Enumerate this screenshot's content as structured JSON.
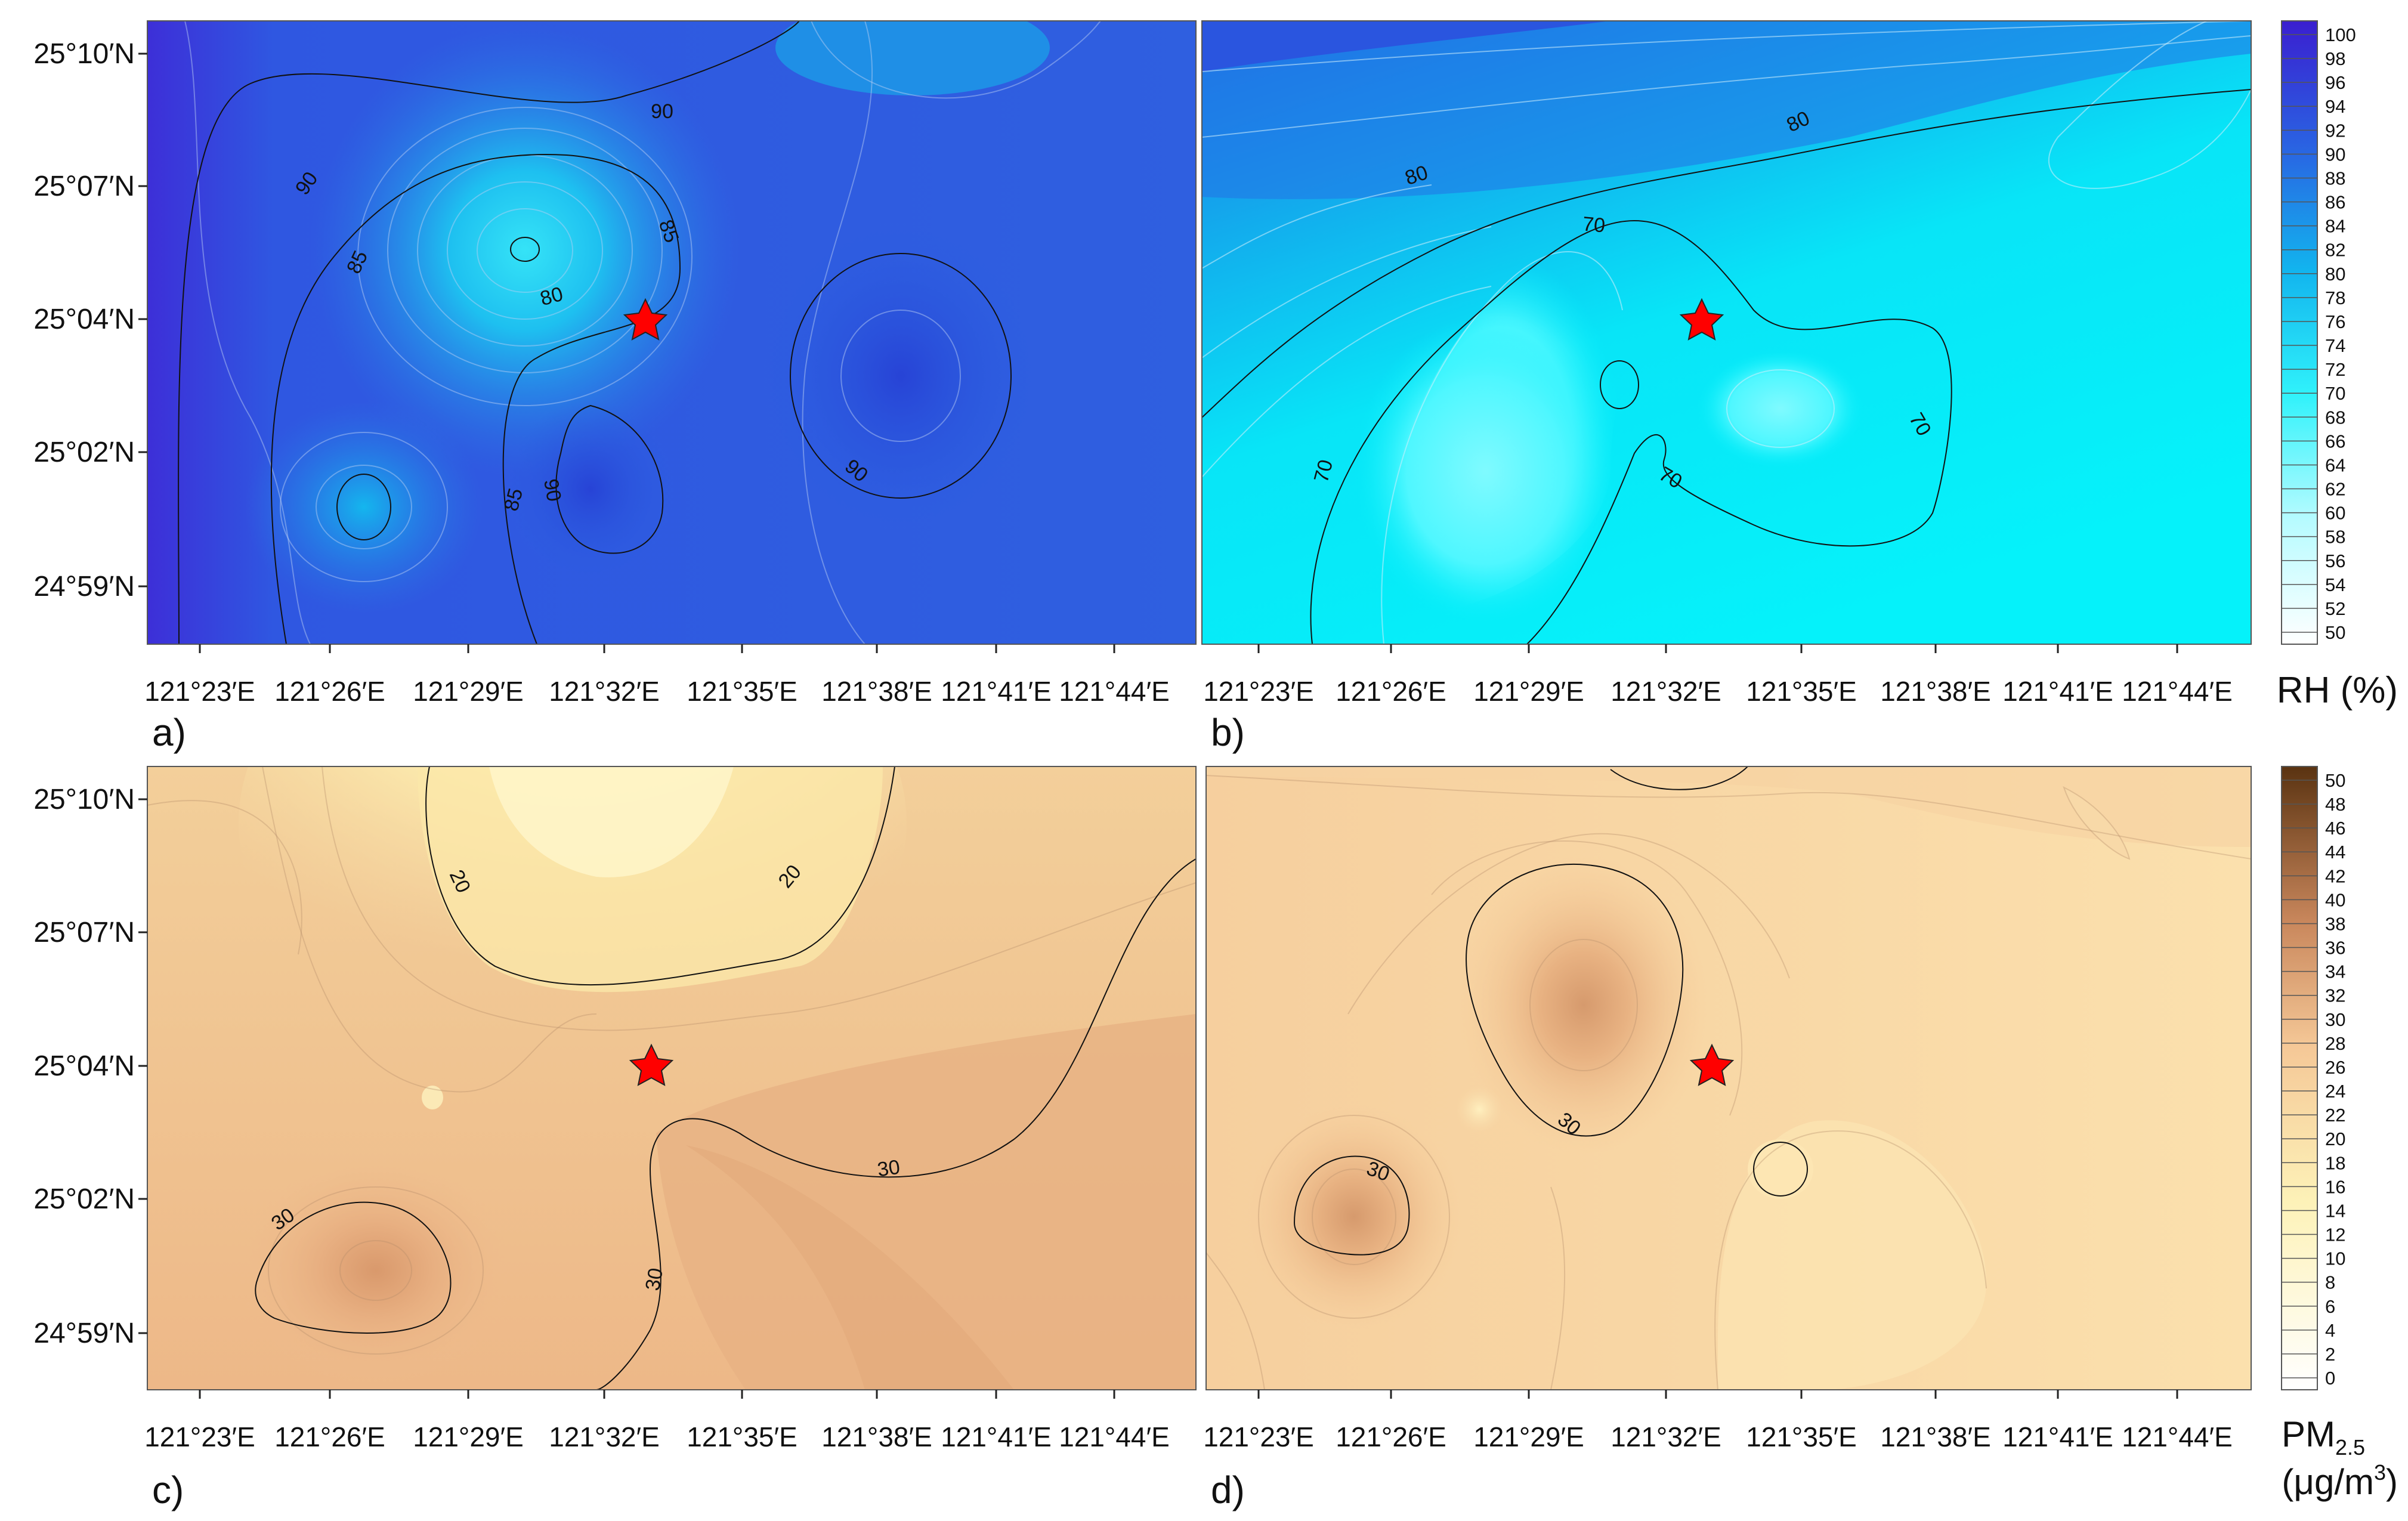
{
  "figure": {
    "panels": [
      {
        "letter": "a)",
        "variable": "RH",
        "field": "rh_a"
      },
      {
        "letter": "b)",
        "variable": "RH",
        "field": "rh_b"
      },
      {
        "letter": "c)",
        "variable": "PM2.5",
        "field": "pm_c"
      },
      {
        "letter": "d)",
        "variable": "PM2.5",
        "field": "pm_d"
      }
    ],
    "lon_labels": [
      "121°23′E",
      "121°26′E",
      "121°29′E",
      "121°32′E",
      "121°35′E",
      "121°38′E",
      "121°41′E",
      "121°44′E"
    ],
    "lat_labels": [
      "25°10′N",
      "25°07′N",
      "25°04′N",
      "25°02′N",
      "24°59′N"
    ],
    "rh_colorbar": {
      "title": "RH (%)",
      "ticks": [
        "100",
        "98",
        "96",
        "94",
        "92",
        "90",
        "88",
        "86",
        "84",
        "82",
        "80",
        "78",
        "76",
        "74",
        "72",
        "70",
        "68",
        "66",
        "64",
        "62",
        "60",
        "58",
        "56",
        "54",
        "52",
        "50"
      ],
      "color_low": "#ffffff",
      "color_high": "#3a1fd0"
    },
    "pm_colorbar": {
      "title_main": "PM",
      "title_sub": "2.5",
      "units_main": "(μg/m",
      "units_sup": "3",
      "units_close": ")",
      "ticks": [
        "50",
        "48",
        "46",
        "44",
        "42",
        "40",
        "38",
        "36",
        "34",
        "32",
        "30",
        "28",
        "26",
        "24",
        "22",
        "20",
        "18",
        "16",
        "14",
        "12",
        "10",
        "8",
        "6",
        "4",
        "2",
        "0"
      ],
      "color_low": "#ffffff",
      "color_high": "#5a3311"
    },
    "contour_labels": {
      "a": [
        "90",
        "90",
        "85",
        "85",
        "80",
        "90",
        "90",
        "85"
      ],
      "b": [
        "80",
        "80",
        "70",
        "70",
        "70",
        "70"
      ],
      "c": [
        "20",
        "20",
        "30",
        "30",
        "30"
      ],
      "d": [
        "30",
        "30"
      ]
    },
    "marker": {
      "symbol": "star",
      "color": "#ff0000",
      "label": "site-star"
    }
  }
}
